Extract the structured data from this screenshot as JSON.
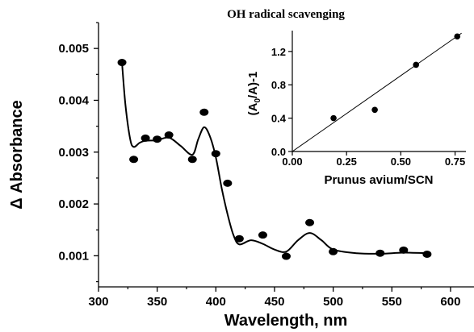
{
  "chart_data": [
    {
      "type": "scatter",
      "title": "",
      "xlabel": "Wavelength, nm",
      "ylabel": "Δ Absorbance",
      "xlim": [
        300,
        620
      ],
      "ylim": [
        0.0004,
        0.0055
      ],
      "xticks": [
        300,
        350,
        400,
        450,
        500,
        550,
        600
      ],
      "yticks": [
        0.001,
        0.002,
        0.003,
        0.004,
        0.005
      ],
      "xtick_labels": [
        "300",
        "350",
        "400",
        "450",
        "500",
        "550",
        "600"
      ],
      "ytick_labels": [
        "0.001",
        "0.002",
        "0.003",
        "0.004",
        "0.005"
      ],
      "grid": false,
      "legend": "none",
      "series": [
        {
          "style": "markers",
          "x": [
            320,
            330,
            340,
            350,
            360,
            380,
            390,
            400,
            410,
            420,
            440,
            460,
            480,
            500,
            540,
            560,
            580
          ],
          "y": [
            0.00473,
            0.00286,
            0.00327,
            0.00325,
            0.00333,
            0.00286,
            0.00377,
            0.00297,
            0.0024,
            0.00133,
            0.0014,
            0.00099,
            0.00164,
            0.00108,
            0.00105,
            0.00111,
            0.00103
          ]
        },
        {
          "style": "smooth-line",
          "x": [
            320,
            323,
            327,
            330,
            335,
            340,
            350,
            360,
            370,
            380,
            385,
            390,
            395,
            400,
            405,
            410,
            415,
            420,
            430,
            440,
            450,
            460,
            470,
            480,
            490,
            500,
            520,
            540,
            560,
            580
          ],
          "y": [
            0.00473,
            0.0039,
            0.00325,
            0.0031,
            0.00318,
            0.00322,
            0.00323,
            0.00328,
            0.00312,
            0.00295,
            0.00325,
            0.00348,
            0.0033,
            0.0029,
            0.0023,
            0.0018,
            0.0014,
            0.00122,
            0.0013,
            0.00123,
            0.00112,
            0.00108,
            0.0013,
            0.00144,
            0.0013,
            0.00112,
            0.00105,
            0.00104,
            0.00106,
            0.00105
          ]
        }
      ]
    },
    {
      "type": "scatter",
      "title": "OH radical scavenging",
      "xlabel": "Prunus avium/SCN",
      "ylabel": "(A0/A)-1",
      "xlim": [
        0.0,
        0.8
      ],
      "ylim": [
        0.0,
        1.45
      ],
      "xticks": [
        0.0,
        0.25,
        0.5,
        0.75
      ],
      "yticks": [
        0.0,
        0.4,
        0.8,
        1.2
      ],
      "xtick_labels": [
        "0.00",
        "0.25",
        "0.50",
        "0.75"
      ],
      "ytick_labels": [
        "0.0",
        "0.4",
        "0.8",
        "1.2"
      ],
      "grid": false,
      "legend": "none",
      "series": [
        {
          "style": "markers",
          "x": [
            0.19,
            0.38,
            0.57,
            0.76
          ],
          "y": [
            0.4,
            0.5,
            1.04,
            1.38
          ]
        },
        {
          "style": "linear-fit",
          "x": [
            0.0,
            0.78
          ],
          "y": [
            0.0,
            1.42
          ]
        }
      ]
    }
  ]
}
